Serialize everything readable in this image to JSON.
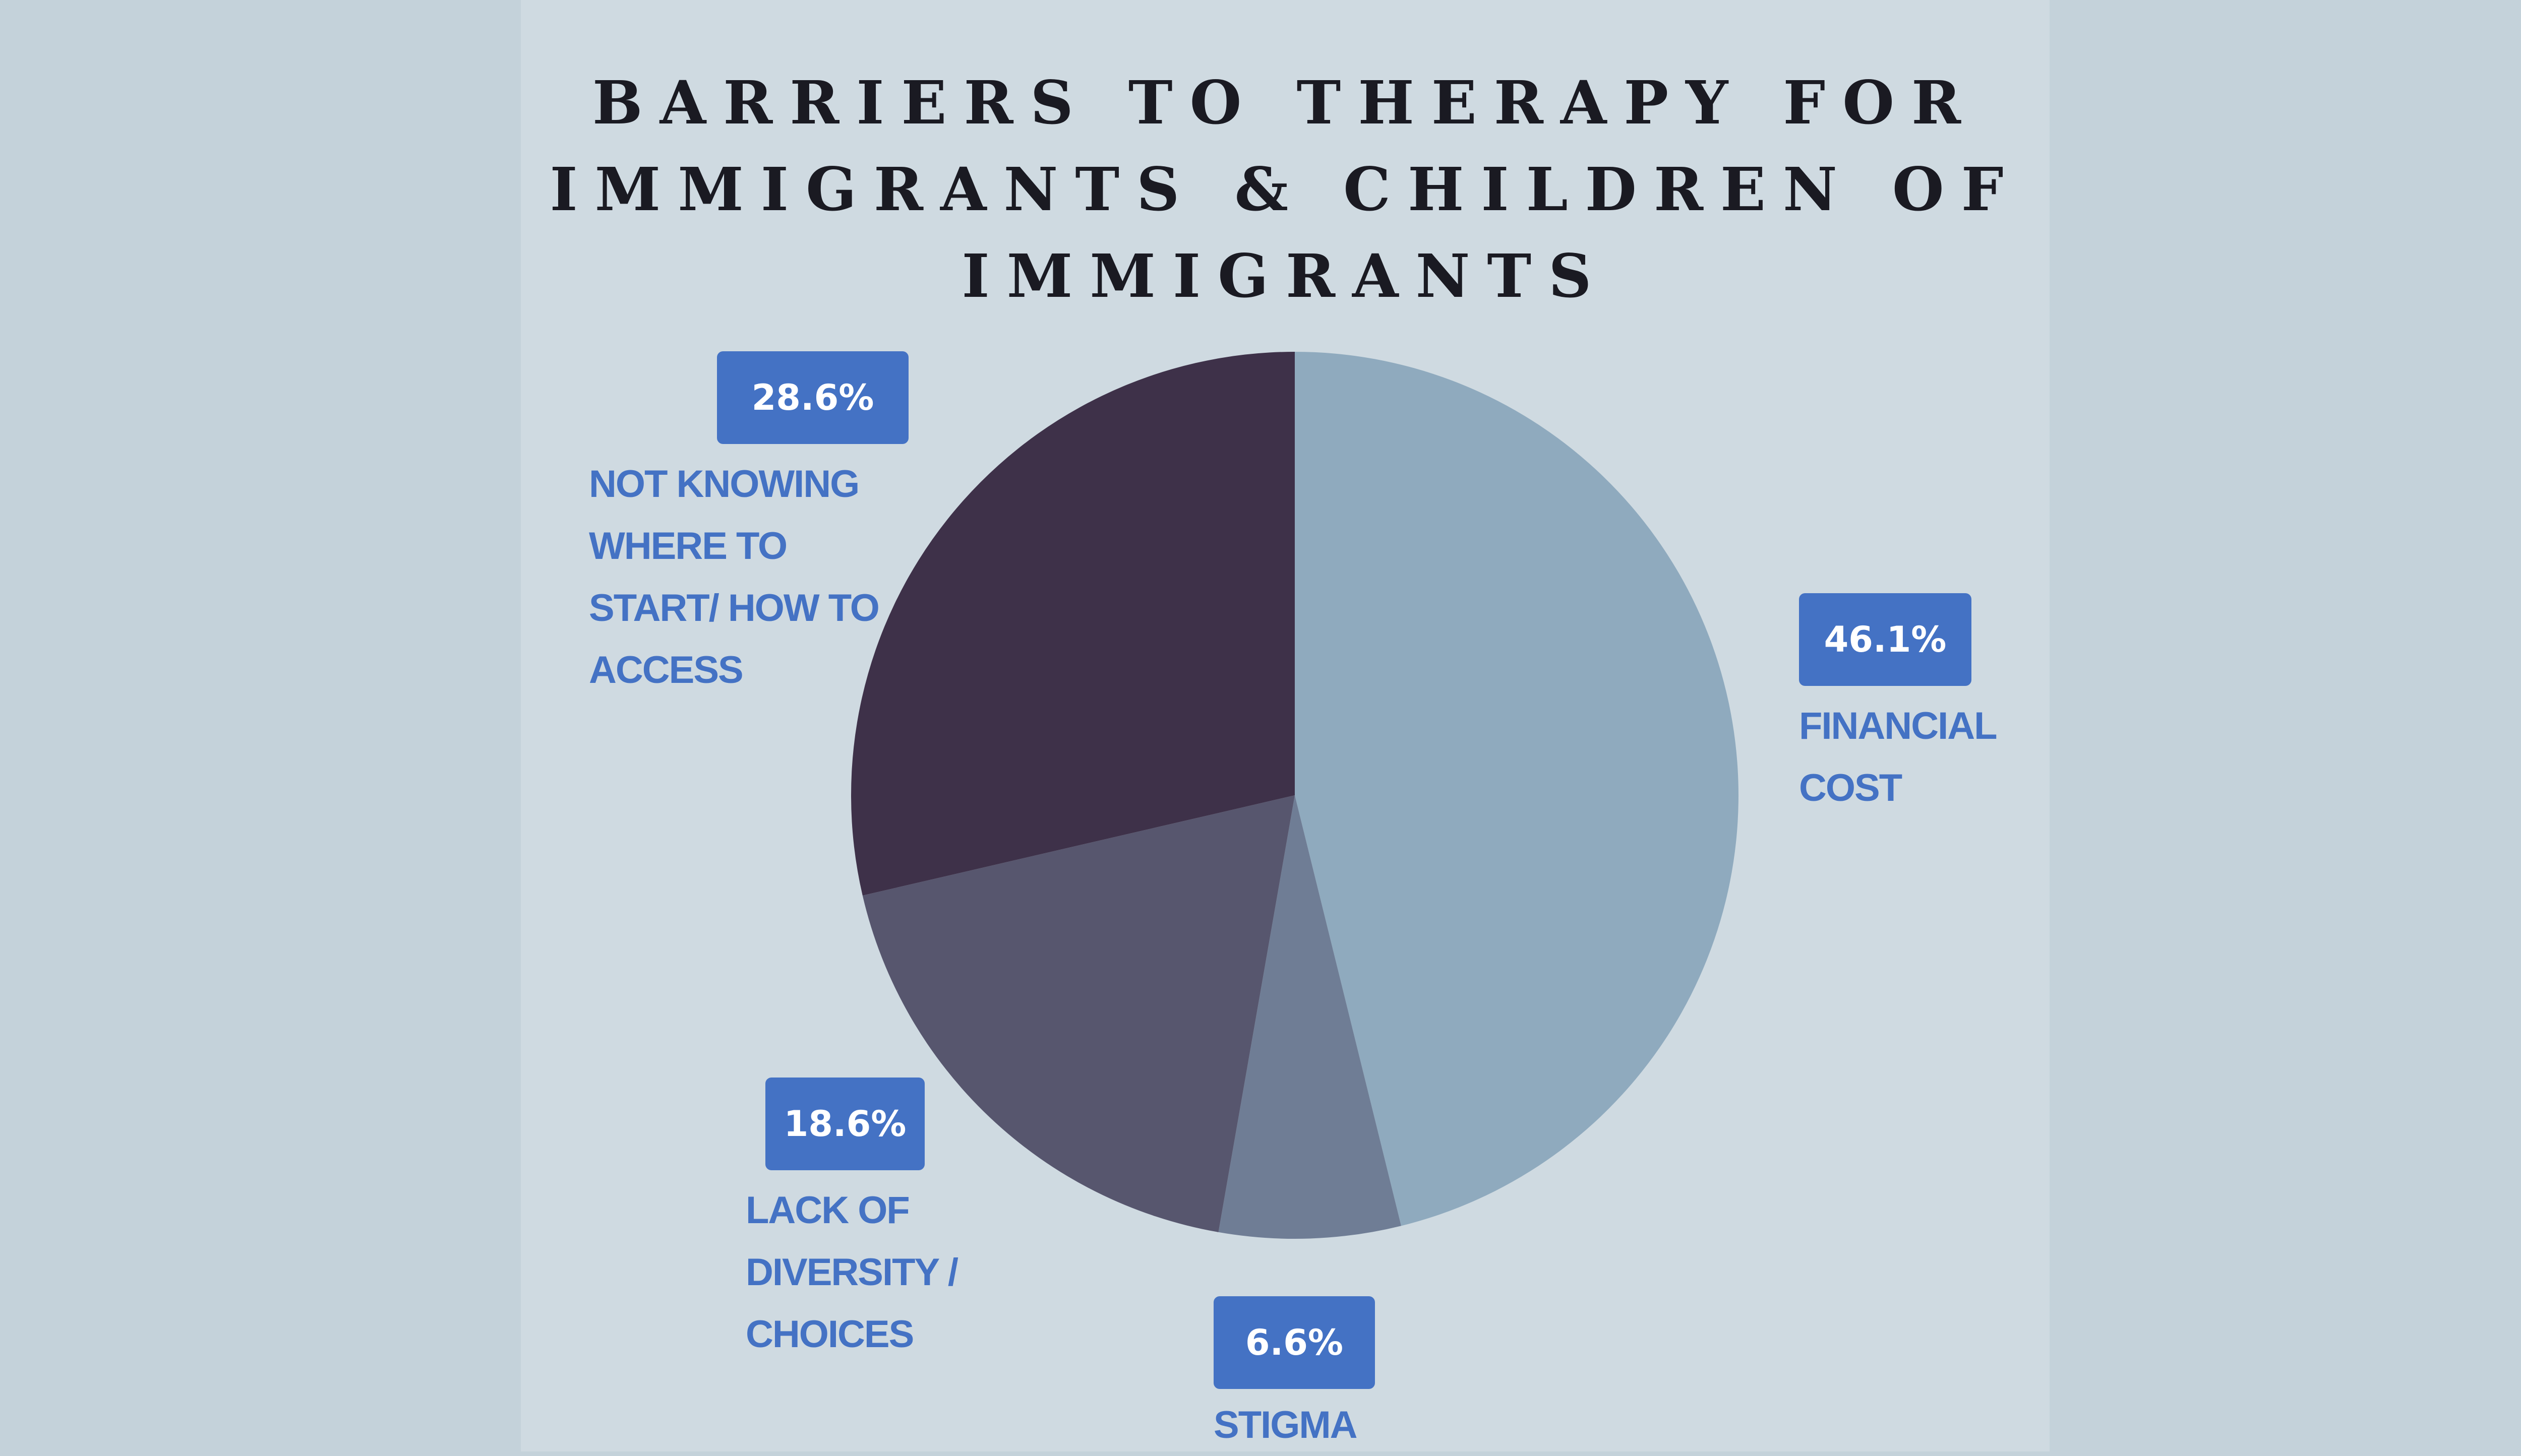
{
  "chart_data": {
    "type": "pie",
    "title": [
      "BARRIERS TO THERAPY FOR",
      "IMMIGRANTS & CHILDREN OF",
      "IMMIGRANTS"
    ],
    "slices": [
      {
        "label": [
          "FINANCIAL",
          "COST"
        ],
        "value": 46.1,
        "value_label": "46.1%",
        "color": "#8faabe"
      },
      {
        "label": [
          "STIGMA"
        ],
        "value": 6.6,
        "value_label": "6.6%",
        "color": "#6f7d95"
      },
      {
        "label": [
          "LACK OF",
          "DIVERSITY /",
          "CHOICES"
        ],
        "value": 18.6,
        "value_label": "18.6%",
        "color": "#57566e"
      },
      {
        "label": [
          "NOT KNOWING",
          "WHERE TO",
          "START/ HOW TO",
          "ACCESS"
        ],
        "value": 28.6,
        "value_label": "28.6%",
        "color": "#3e3149"
      }
    ],
    "legend": "none"
  },
  "colors": {
    "background": "#c4d2da",
    "panel": "#cfdae1",
    "badge": "#4472c4",
    "label_text": "#4472c4",
    "title_text": "#1a1a22"
  }
}
